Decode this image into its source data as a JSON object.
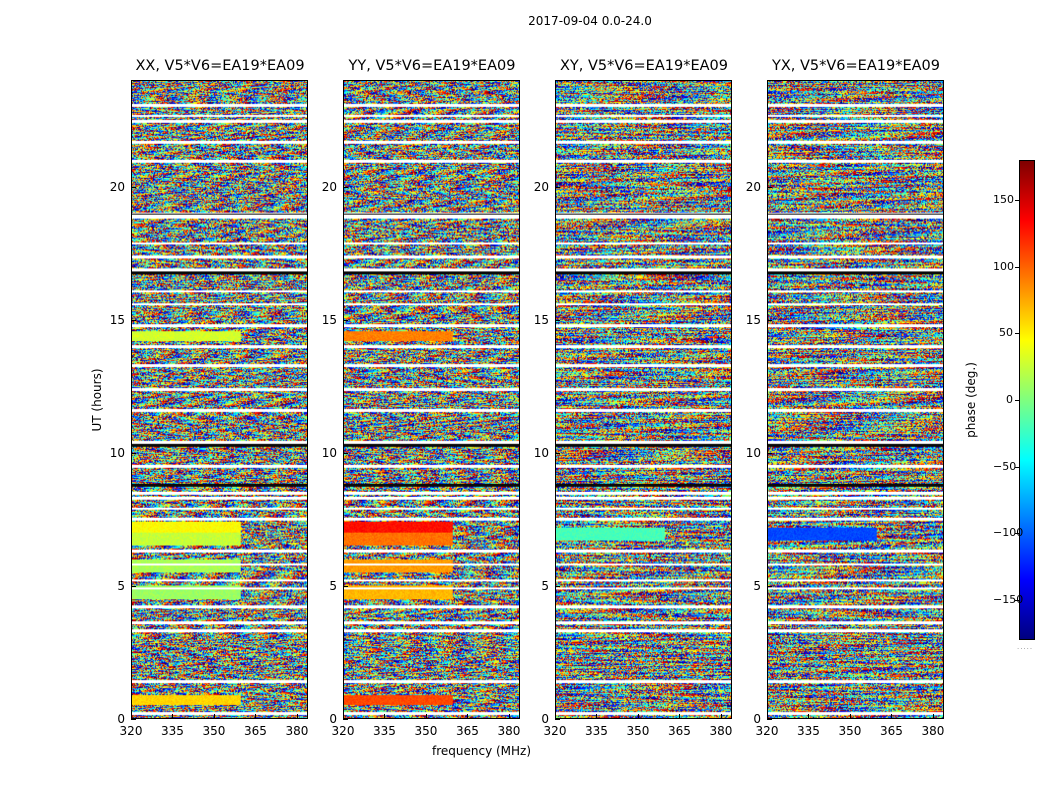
{
  "chart_data": {
    "type": "heatmap",
    "suptitle": "2017-09-04 0.0-24.0",
    "xlabel": "frequency (MHz)",
    "ylabel": "UT (hours)",
    "xlim": [
      320,
      384
    ],
    "ylim": [
      0,
      24
    ],
    "xticks": [
      320,
      335,
      350,
      365,
      380
    ],
    "yticks": [
      0,
      5,
      10,
      15,
      20
    ],
    "colorbar": {
      "label": "phase (deg.)",
      "range": [
        -180,
        180
      ],
      "ticks": [
        -150,
        -100,
        -50,
        0,
        50,
        100,
        150
      ],
      "colormap": "jet",
      "footer": "....."
    },
    "panels": [
      {
        "title": "XX, V5*V6=EA19*EA09",
        "coherent_bands": [
          [
            4.5,
            5.0,
            10
          ],
          [
            5.5,
            6.0,
            15
          ],
          [
            6.5,
            7.0,
            25
          ],
          [
            6.8,
            7.4,
            45
          ],
          [
            14.2,
            14.6,
            30
          ],
          [
            0.5,
            0.9,
            60
          ]
        ]
      },
      {
        "title": "YY, V5*V6=EA19*EA09",
        "coherent_bands": [
          [
            4.5,
            5.0,
            70
          ],
          [
            5.5,
            6.0,
            80
          ],
          [
            6.5,
            7.0,
            95
          ],
          [
            6.8,
            7.4,
            130
          ],
          [
            14.2,
            14.6,
            90
          ],
          [
            0.5,
            0.9,
            110
          ]
        ]
      },
      {
        "title": "XY, V5*V6=EA19*EA09",
        "coherent_bands": [
          [
            6.7,
            7.2,
            -20
          ]
        ]
      },
      {
        "title": "YX, V5*V6=EA19*EA09",
        "coherent_bands": [
          [
            6.7,
            7.2,
            -110
          ]
        ]
      }
    ],
    "flagged_ut_rows": [
      0.2,
      1.4,
      3.3,
      3.6,
      4.2,
      4.9,
      5.2,
      5.8,
      6.3,
      7.5,
      7.9,
      8.3,
      8.5,
      9.5,
      10.4,
      11.6,
      12.4,
      13.3,
      14.0,
      14.8,
      15.6,
      16.1,
      16.9,
      17.4,
      17.9,
      18.9,
      19.0,
      21.0,
      21.7,
      22.5,
      22.7,
      23.1
    ]
  }
}
